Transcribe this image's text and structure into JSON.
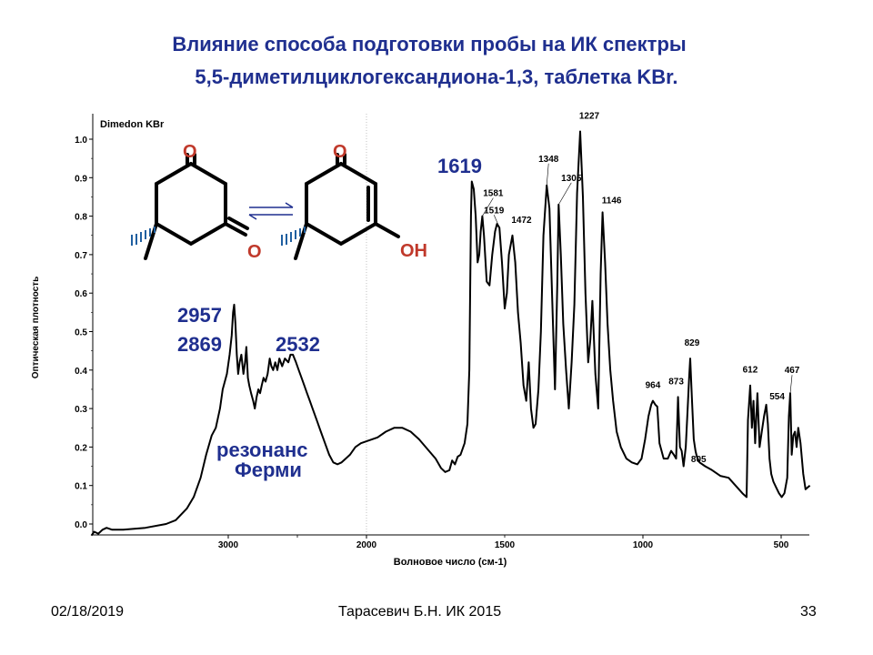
{
  "slide": {
    "title_line1": "Влияние способа подготовки пробы на ИК спектры",
    "title_line2": "5,5-диметилциклогександиона-1,3, таблетка KBr."
  },
  "footer": {
    "date": "02/18/2019",
    "author": "Тарасевич Б.Н.  ИК 2015",
    "page": "33"
  },
  "chart_data": {
    "type": "line",
    "title": "Dimedon KBr",
    "xlabel": "Волновое число (см-1)",
    "ylabel": "Оптическая плотность",
    "xlim": [
      4000,
      380
    ],
    "ylim": [
      -0.03,
      1.05
    ],
    "x_ticks": [
      3000,
      2000,
      1000,
      500
    ],
    "x_ticks_minor": [
      2500,
      1500
    ],
    "y_ticks": [
      0.0,
      0.1,
      0.2,
      0.3,
      0.4,
      0.5,
      0.6,
      0.7,
      0.8,
      0.9,
      1.0
    ],
    "x_tick_labels": [
      "3000",
      "2000",
      "1500",
      "1000",
      "500"
    ],
    "y_tick_labels": [
      "0.0",
      "0.1",
      "0.2",
      "0.3",
      "0.4",
      "0.5",
      "0.6",
      "0.7",
      "0.8",
      "0.9",
      "1.0"
    ],
    "series": [
      {
        "color": "#000000",
        "points": [
          [
            3990,
            -0.03
          ],
          [
            3970,
            -0.02
          ],
          [
            3940,
            -0.025
          ],
          [
            3910,
            -0.015
          ],
          [
            3880,
            -0.01
          ],
          [
            3840,
            -0.015
          ],
          [
            3760,
            -0.015
          ],
          [
            3600,
            -0.01
          ],
          [
            3450,
            0.0
          ],
          [
            3380,
            0.01
          ],
          [
            3300,
            0.04
          ],
          [
            3250,
            0.07
          ],
          [
            3200,
            0.12
          ],
          [
            3160,
            0.18
          ],
          [
            3120,
            0.23
          ],
          [
            3090,
            0.25
          ],
          [
            3060,
            0.3
          ],
          [
            3040,
            0.35
          ],
          [
            3010,
            0.39
          ],
          [
            2990,
            0.44
          ],
          [
            2975,
            0.49
          ],
          [
            2965,
            0.55
          ],
          [
            2957,
            0.57
          ],
          [
            2948,
            0.52
          ],
          [
            2938,
            0.44
          ],
          [
            2928,
            0.39
          ],
          [
            2918,
            0.42
          ],
          [
            2905,
            0.44
          ],
          [
            2890,
            0.39
          ],
          [
            2878,
            0.42
          ],
          [
            2869,
            0.46
          ],
          [
            2858,
            0.38
          ],
          [
            2848,
            0.36
          ],
          [
            2835,
            0.34
          ],
          [
            2820,
            0.32
          ],
          [
            2808,
            0.3
          ],
          [
            2795,
            0.33
          ],
          [
            2782,
            0.35
          ],
          [
            2770,
            0.34
          ],
          [
            2758,
            0.36
          ],
          [
            2745,
            0.38
          ],
          [
            2730,
            0.37
          ],
          [
            2715,
            0.39
          ],
          [
            2700,
            0.43
          ],
          [
            2688,
            0.41
          ],
          [
            2675,
            0.4
          ],
          [
            2660,
            0.42
          ],
          [
            2645,
            0.4
          ],
          [
            2630,
            0.43
          ],
          [
            2610,
            0.41
          ],
          [
            2590,
            0.43
          ],
          [
            2565,
            0.42
          ],
          [
            2550,
            0.44
          ],
          [
            2532,
            0.44
          ],
          [
            2510,
            0.42
          ],
          [
            2490,
            0.4
          ],
          [
            2470,
            0.38
          ],
          [
            2450,
            0.36
          ],
          [
            2430,
            0.34
          ],
          [
            2410,
            0.32
          ],
          [
            2390,
            0.3
          ],
          [
            2360,
            0.27
          ],
          [
            2330,
            0.24
          ],
          [
            2300,
            0.21
          ],
          [
            2270,
            0.18
          ],
          [
            2240,
            0.16
          ],
          [
            2210,
            0.155
          ],
          [
            2180,
            0.16
          ],
          [
            2150,
            0.17
          ],
          [
            2120,
            0.18
          ],
          [
            2080,
            0.2
          ],
          [
            2040,
            0.21
          ],
          [
            2000,
            0.215
          ],
          [
            1960,
            0.225
          ],
          [
            1930,
            0.24
          ],
          [
            1900,
            0.25
          ],
          [
            1870,
            0.25
          ],
          [
            1840,
            0.24
          ],
          [
            1810,
            0.22
          ],
          [
            1780,
            0.195
          ],
          [
            1750,
            0.17
          ],
          [
            1730,
            0.145
          ],
          [
            1715,
            0.135
          ],
          [
            1700,
            0.14
          ],
          [
            1690,
            0.165
          ],
          [
            1680,
            0.155
          ],
          [
            1670,
            0.175
          ],
          [
            1660,
            0.18
          ],
          [
            1645,
            0.21
          ],
          [
            1635,
            0.26
          ],
          [
            1628,
            0.4
          ],
          [
            1622,
            0.8
          ],
          [
            1619,
            0.89
          ],
          [
            1612,
            0.87
          ],
          [
            1605,
            0.8
          ],
          [
            1598,
            0.68
          ],
          [
            1592,
            0.7
          ],
          [
            1587,
            0.76
          ],
          [
            1581,
            0.8
          ],
          [
            1575,
            0.75
          ],
          [
            1565,
            0.63
          ],
          [
            1555,
            0.62
          ],
          [
            1545,
            0.7
          ],
          [
            1535,
            0.76
          ],
          [
            1528,
            0.78
          ],
          [
            1519,
            0.77
          ],
          [
            1510,
            0.68
          ],
          [
            1500,
            0.56
          ],
          [
            1492,
            0.6
          ],
          [
            1485,
            0.7
          ],
          [
            1472,
            0.75
          ],
          [
            1462,
            0.68
          ],
          [
            1452,
            0.55
          ],
          [
            1442,
            0.47
          ],
          [
            1432,
            0.36
          ],
          [
            1422,
            0.32
          ],
          [
            1413,
            0.42
          ],
          [
            1405,
            0.3
          ],
          [
            1396,
            0.25
          ],
          [
            1388,
            0.26
          ],
          [
            1378,
            0.35
          ],
          [
            1369,
            0.5
          ],
          [
            1360,
            0.75
          ],
          [
            1348,
            0.88
          ],
          [
            1338,
            0.82
          ],
          [
            1328,
            0.58
          ],
          [
            1318,
            0.35
          ],
          [
            1310,
            0.62
          ],
          [
            1305,
            0.83
          ],
          [
            1297,
            0.7
          ],
          [
            1288,
            0.52
          ],
          [
            1278,
            0.4
          ],
          [
            1268,
            0.3
          ],
          [
            1258,
            0.42
          ],
          [
            1248,
            0.57
          ],
          [
            1238,
            0.86
          ],
          [
            1227,
            1.02
          ],
          [
            1217,
            0.85
          ],
          [
            1208,
            0.6
          ],
          [
            1198,
            0.42
          ],
          [
            1190,
            0.48
          ],
          [
            1183,
            0.58
          ],
          [
            1172,
            0.39
          ],
          [
            1162,
            0.3
          ],
          [
            1153,
            0.65
          ],
          [
            1146,
            0.81
          ],
          [
            1137,
            0.68
          ],
          [
            1128,
            0.52
          ],
          [
            1118,
            0.4
          ],
          [
            1108,
            0.32
          ],
          [
            1095,
            0.24
          ],
          [
            1080,
            0.2
          ],
          [
            1060,
            0.17
          ],
          [
            1040,
            0.16
          ],
          [
            1020,
            0.155
          ],
          [
            1005,
            0.17
          ],
          [
            992,
            0.22
          ],
          [
            980,
            0.28
          ],
          [
            970,
            0.31
          ],
          [
            964,
            0.32
          ],
          [
            955,
            0.31
          ],
          [
            948,
            0.305
          ],
          [
            940,
            0.21
          ],
          [
            925,
            0.17
          ],
          [
            910,
            0.17
          ],
          [
            898,
            0.19
          ],
          [
            888,
            0.18
          ],
          [
            880,
            0.17
          ],
          [
            873,
            0.33
          ],
          [
            866,
            0.2
          ],
          [
            860,
            0.19
          ],
          [
            853,
            0.15
          ],
          [
            845,
            0.2
          ],
          [
            838,
            0.3
          ],
          [
            833,
            0.38
          ],
          [
            829,
            0.43
          ],
          [
            823,
            0.33
          ],
          [
            816,
            0.22
          ],
          [
            810,
            0.19
          ],
          [
            805,
            0.175
          ],
          [
            795,
            0.16
          ],
          [
            775,
            0.15
          ],
          [
            750,
            0.14
          ],
          [
            720,
            0.125
          ],
          [
            690,
            0.12
          ],
          [
            665,
            0.1
          ],
          [
            640,
            0.08
          ],
          [
            625,
            0.07
          ],
          [
            620,
            0.27
          ],
          [
            612,
            0.36
          ],
          [
            606,
            0.25
          ],
          [
            600,
            0.32
          ],
          [
            594,
            0.21
          ],
          [
            586,
            0.34
          ],
          [
            578,
            0.2
          ],
          [
            570,
            0.24
          ],
          [
            562,
            0.28
          ],
          [
            554,
            0.31
          ],
          [
            548,
            0.26
          ],
          [
            542,
            0.17
          ],
          [
            536,
            0.13
          ],
          [
            528,
            0.11
          ],
          [
            518,
            0.095
          ],
          [
            508,
            0.08
          ],
          [
            498,
            0.07
          ],
          [
            488,
            0.08
          ],
          [
            478,
            0.12
          ],
          [
            472,
            0.28
          ],
          [
            467,
            0.34
          ],
          [
            462,
            0.18
          ],
          [
            456,
            0.23
          ],
          [
            450,
            0.24
          ],
          [
            444,
            0.2
          ],
          [
            438,
            0.25
          ],
          [
            430,
            0.21
          ],
          [
            420,
            0.13
          ],
          [
            412,
            0.09
          ],
          [
            404,
            0.095
          ],
          [
            396,
            0.1
          ]
        ]
      }
    ],
    "peak_labels": [
      {
        "text": "1581",
        "x": 1581,
        "y": 0.8
      },
      {
        "text": "1519",
        "x": 1519,
        "y": 0.77
      },
      {
        "text": "1472",
        "x": 1472,
        "y": 0.75
      },
      {
        "text": "1348",
        "x": 1348,
        "y": 0.88
      },
      {
        "text": "1305",
        "x": 1305,
        "y": 0.83
      },
      {
        "text": "1227",
        "x": 1227,
        "y": 1.02
      },
      {
        "text": "1146",
        "x": 1146,
        "y": 0.81
      },
      {
        "text": "964",
        "x": 964,
        "y": 0.32
      },
      {
        "text": "873",
        "x": 873,
        "y": 0.33
      },
      {
        "text": "829",
        "x": 829,
        "y": 0.43
      },
      {
        "text": "805",
        "x": 805,
        "y": 0.175
      },
      {
        "text": "612",
        "x": 612,
        "y": 0.36
      },
      {
        "text": "554",
        "x": 554,
        "y": 0.31
      },
      {
        "text": "467",
        "x": 467,
        "y": 0.34
      }
    ],
    "annotations": {
      "peak_1619": "1619",
      "peak_2957": "2957",
      "peak_2869": "2869",
      "peak_2532": "2532",
      "fermi_line1": "резонанс",
      "fermi_line2": "Ферми",
      "annotation_color": "#1f2f8f"
    },
    "structures": {
      "keto_o_top": "O",
      "keto_o_right": "O",
      "enol_o_top": "O",
      "enol_oh": "OH",
      "hetero_color": "#c0392b"
    },
    "grid": false
  }
}
